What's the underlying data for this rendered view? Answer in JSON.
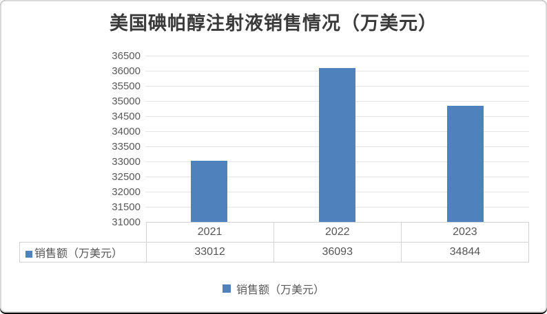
{
  "chart_data": {
    "type": "bar",
    "title": "美国碘帕醇注射液销售情况（万美元）",
    "categories": [
      "2021",
      "2022",
      "2023"
    ],
    "series": [
      {
        "name": "销售额（万美元）",
        "values": [
          33012,
          36093,
          34844
        ]
      }
    ],
    "ylim": [
      31000,
      36500
    ],
    "ytick_step": 500,
    "ytick_labels": [
      "36500",
      "36000",
      "35500",
      "35000",
      "34500",
      "34000",
      "33500",
      "33000",
      "32500",
      "32000",
      "31500",
      "31000"
    ],
    "grid": true,
    "legend_position": "bottom",
    "show_data_table": true
  },
  "colors": {
    "bar": "#4F81BD",
    "gridline": "#E4E4E4",
    "table_border": "#D2D2D2",
    "label_text": "#595959",
    "title_text": "#3A3A3A",
    "frame_border": "#D9D9D9"
  }
}
